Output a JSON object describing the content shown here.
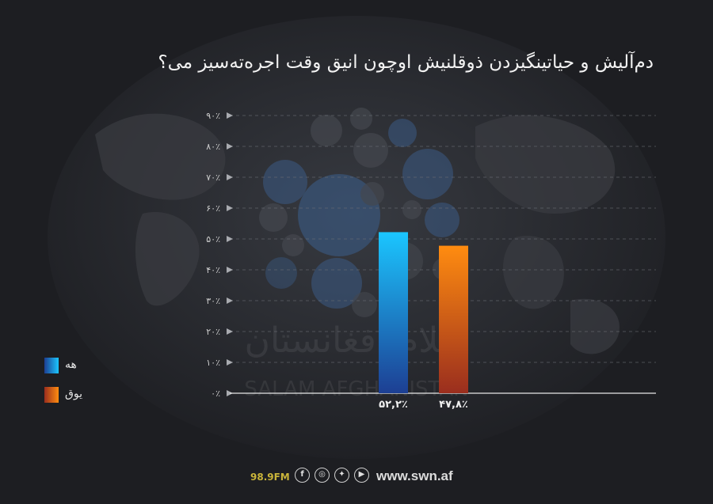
{
  "title": "دم‌آلیش و حیاتینگیزدن ذوقلنیش اوچون انیق وقت اجره‌ته‌سیز می؟",
  "watermark": {
    "script": "سلام افغانستان",
    "latin": "SALAM AFGHANISTAN"
  },
  "legend": [
    {
      "label": "هه",
      "color": "#1a9ee0"
    },
    {
      "label": "یوق",
      "color": "#f08a1c"
    }
  ],
  "chart_data": {
    "type": "bar",
    "categories": [
      "هه",
      "یوق"
    ],
    "values": [
      52.2,
      47.8
    ],
    "value_labels": [
      "۵۲,۲٪",
      "۴۷,۸٪"
    ],
    "ylim": [
      0,
      90
    ],
    "yticks": [
      0,
      10,
      20,
      30,
      40,
      50,
      60,
      70,
      80,
      90
    ],
    "ytick_labels": [
      "۰٪",
      "۱۰٪",
      "۲۰٪",
      "۳۰٪",
      "۴۰٪",
      "۵۰٪",
      "۶۰٪",
      "۷۰٪",
      "۸۰٪",
      "۹۰٪"
    ],
    "grid": true,
    "legend_position": "left"
  },
  "footer": {
    "station": "98.9FM",
    "social": [
      {
        "icon": "facebook-icon",
        "glyph": "f"
      },
      {
        "icon": "instagram-icon",
        "glyph": "◎"
      },
      {
        "icon": "twitter-icon",
        "glyph": "✦"
      },
      {
        "icon": "youtube-icon",
        "glyph": "▶"
      }
    ],
    "site": "www.swn.af"
  }
}
